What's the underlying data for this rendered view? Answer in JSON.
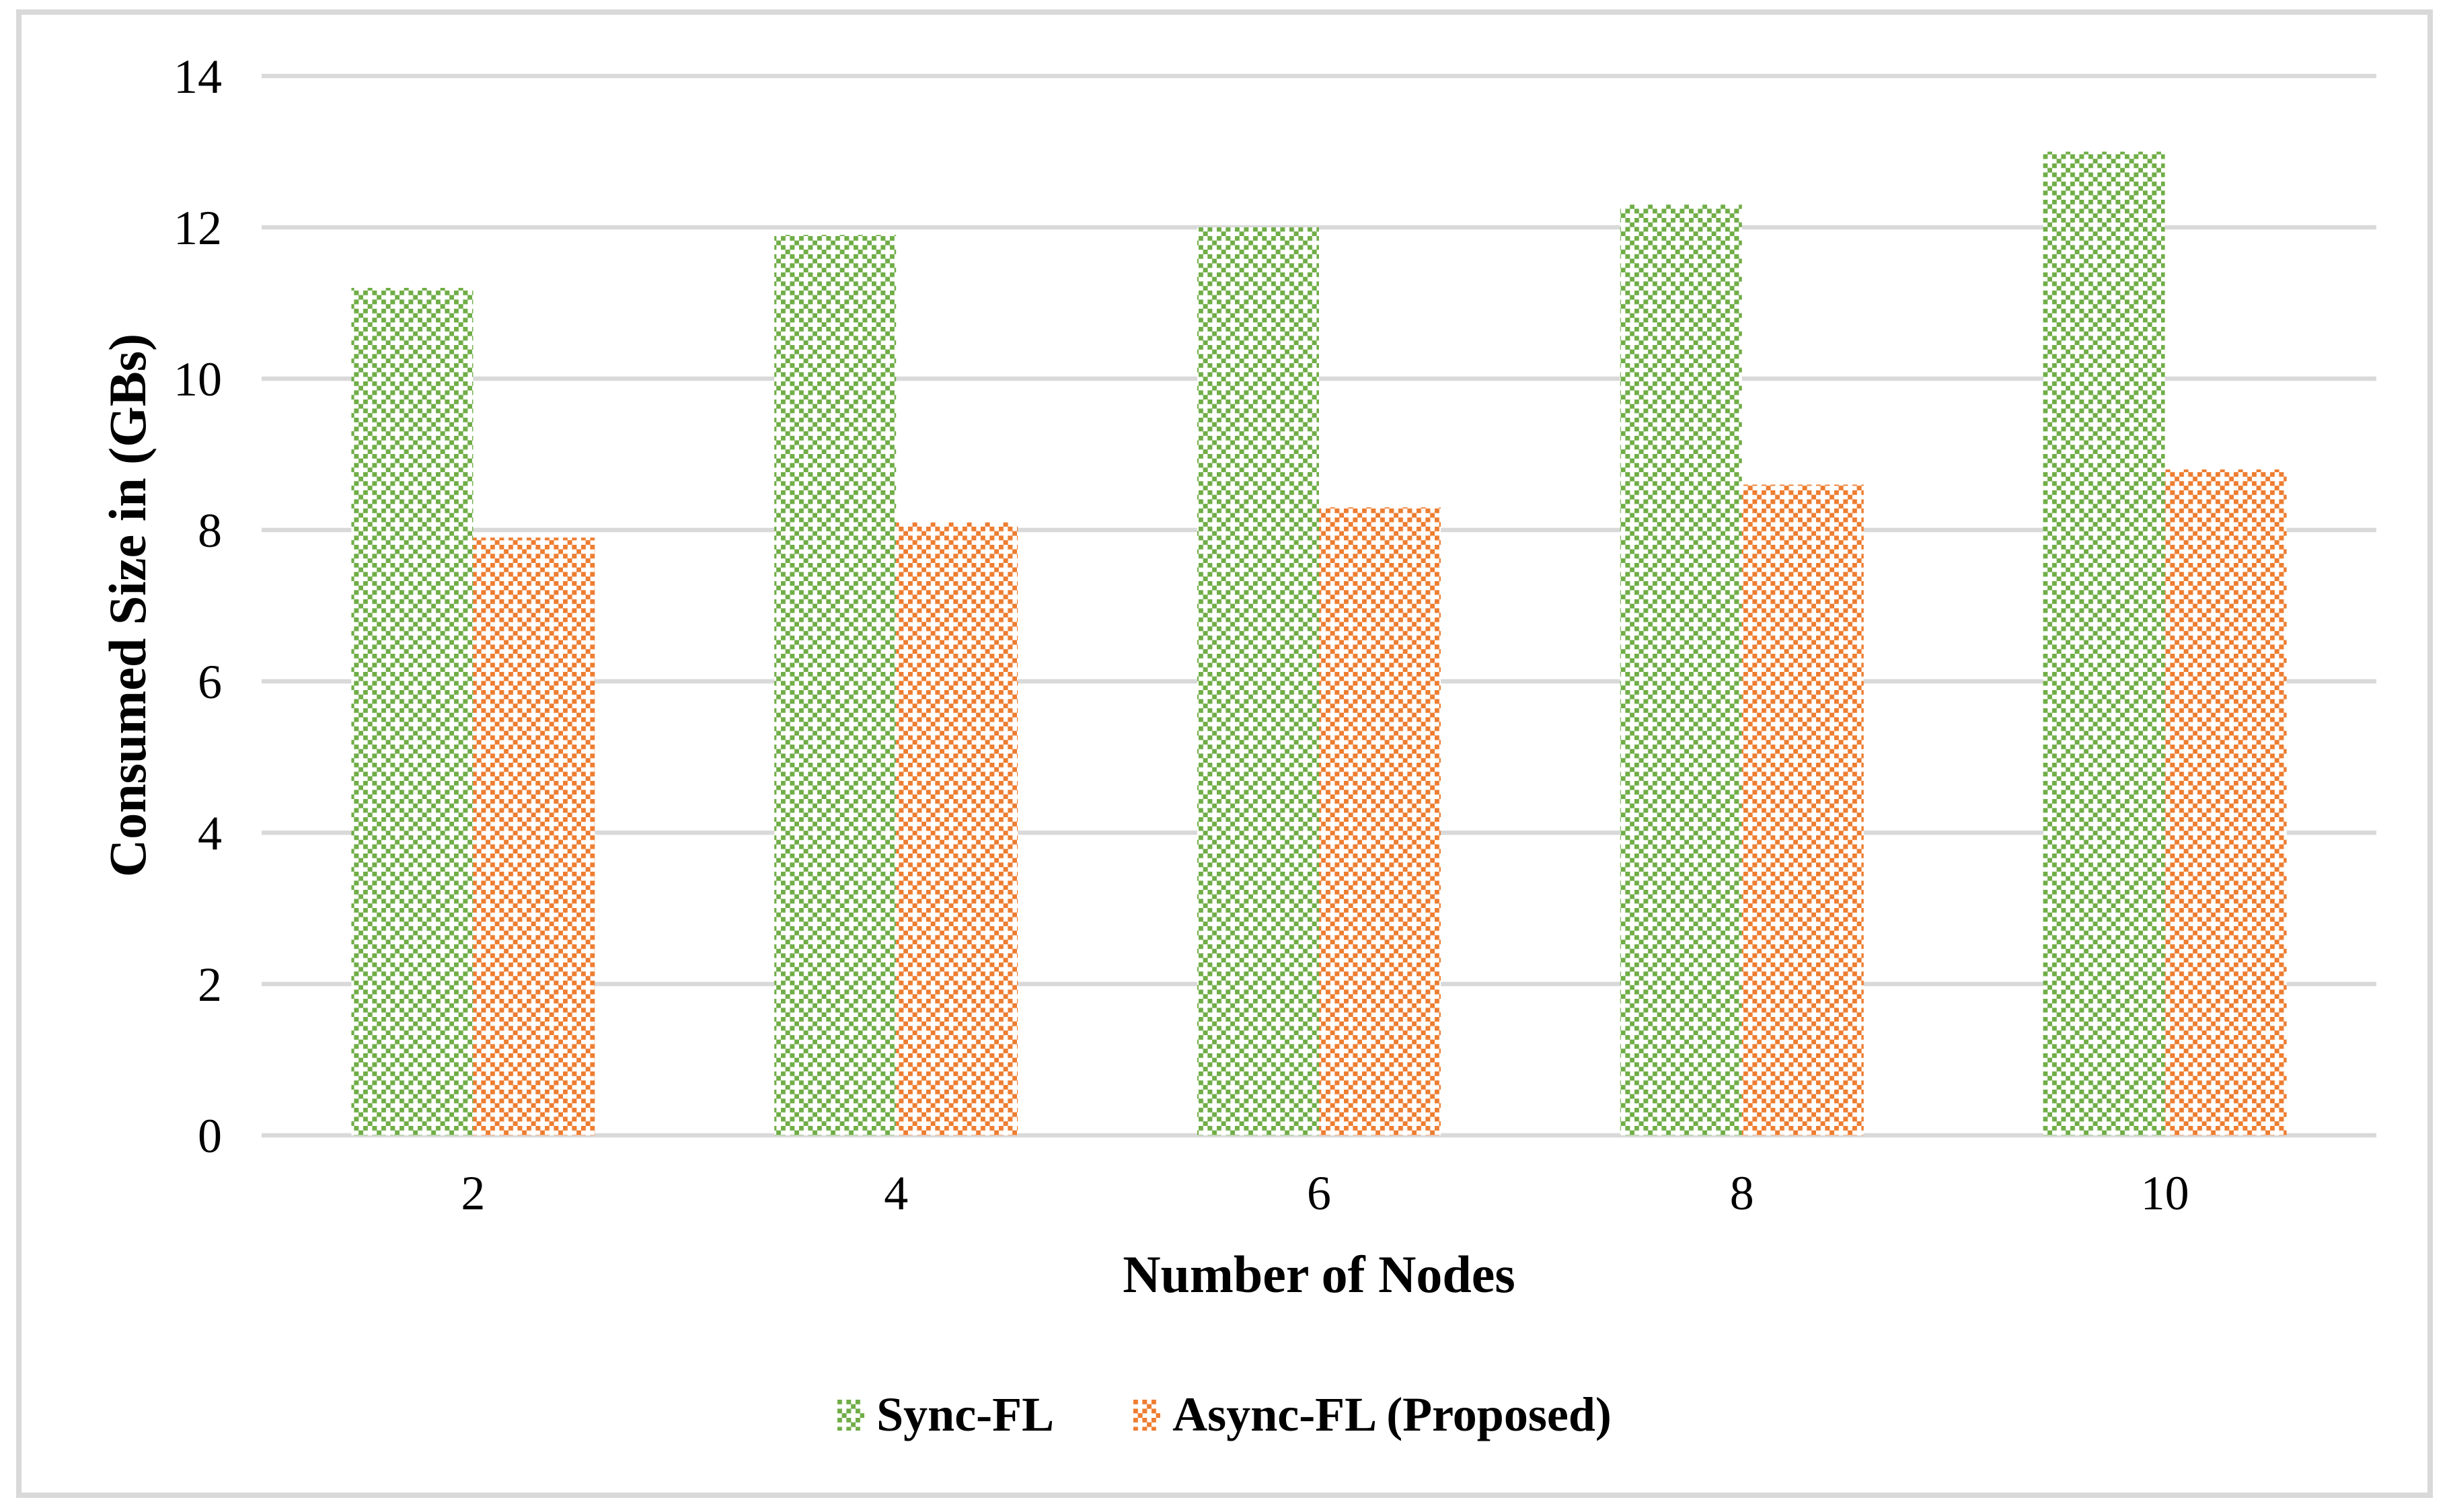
{
  "figure": {
    "background": "#FFFFFF",
    "border_color": "#D9D9D9"
  },
  "chart_data": {
    "type": "bar",
    "title": "",
    "categories": [
      "2",
      "4",
      "6",
      "8",
      "10"
    ],
    "series": [
      {
        "name": "Sync-FL",
        "color": "#70AD47",
        "pattern": "dotted-diamond-checker",
        "values": [
          11.2,
          11.9,
          12.0,
          12.3,
          13.0
        ]
      },
      {
        "name": "Async-FL (Proposed)",
        "color": "#ED7D31",
        "pattern": "dotted-diamond-checker",
        "values": [
          7.9,
          8.1,
          8.3,
          8.6,
          8.8
        ]
      }
    ],
    "xlabel": "Number of Nodes",
    "ylabel": "Consumed Size in (GBs)",
    "ylim": [
      0,
      14
    ],
    "yticks": [
      0,
      2,
      4,
      6,
      8,
      10,
      12,
      14
    ],
    "grid": "horizontal",
    "gridline_color": "#D9D9D9",
    "legend_position": "bottom"
  }
}
